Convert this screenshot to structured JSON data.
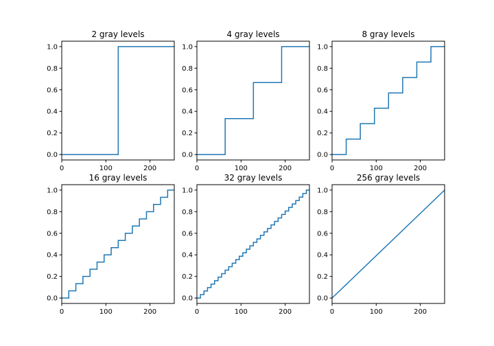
{
  "colors": {
    "series": "#1f77b4",
    "axes": "#000000",
    "background": "#ffffff"
  },
  "chart_data": [
    {
      "type": "line",
      "title": "2 gray levels",
      "levels": 2,
      "xlim": [
        0,
        255
      ],
      "ylim": [
        -0.05,
        1.05
      ],
      "xticks": [
        0,
        100,
        200
      ],
      "yticks": [
        0.0,
        0.2,
        0.4,
        0.6,
        0.8,
        1.0
      ],
      "xtick_labels": [
        "0",
        "100",
        "200"
      ],
      "ytick_labels": [
        "0.0",
        "0.2",
        "0.4",
        "0.6",
        "0.8",
        "1.0"
      ],
      "x": [
        0,
        128,
        128,
        255
      ],
      "y": [
        0,
        0,
        1,
        1
      ]
    },
    {
      "type": "line",
      "title": "4 gray levels",
      "levels": 4,
      "xlim": [
        0,
        255
      ],
      "ylim": [
        -0.05,
        1.05
      ],
      "xticks": [
        0,
        100,
        200
      ],
      "yticks": [
        0.0,
        0.2,
        0.4,
        0.6,
        0.8,
        1.0
      ],
      "xtick_labels": [
        "0",
        "100",
        "200"
      ],
      "ytick_labels": [
        "0.0",
        "0.2",
        "0.4",
        "0.6",
        "0.8",
        "1.0"
      ],
      "x": [
        0,
        64,
        64,
        128,
        128,
        192,
        192,
        255
      ],
      "y": [
        0,
        0,
        0.333,
        0.333,
        0.667,
        0.667,
        1,
        1
      ]
    },
    {
      "type": "line",
      "title": "8 gray levels",
      "levels": 8,
      "xlim": [
        0,
        255
      ],
      "ylim": [
        -0.05,
        1.05
      ],
      "xticks": [
        0,
        100,
        200
      ],
      "yticks": [
        0.0,
        0.2,
        0.4,
        0.6,
        0.8,
        1.0
      ],
      "xtick_labels": [
        "0",
        "100",
        "200"
      ],
      "ytick_labels": [
        "0.0",
        "0.2",
        "0.4",
        "0.6",
        "0.8",
        "1.0"
      ],
      "x": [
        0,
        32,
        32,
        64,
        64,
        96,
        96,
        128,
        128,
        160,
        160,
        192,
        192,
        224,
        224,
        255
      ],
      "y": [
        0,
        0,
        0.143,
        0.143,
        0.286,
        0.286,
        0.429,
        0.429,
        0.571,
        0.571,
        0.714,
        0.714,
        0.857,
        0.857,
        1,
        1
      ]
    },
    {
      "type": "line",
      "title": "16 gray levels",
      "levels": 16,
      "xlim": [
        0,
        255
      ],
      "ylim": [
        -0.05,
        1.05
      ],
      "xticks": [
        0,
        100,
        200
      ],
      "yticks": [
        0.0,
        0.2,
        0.4,
        0.6,
        0.8,
        1.0
      ],
      "xtick_labels": [
        "0",
        "100",
        "200"
      ],
      "ytick_labels": [
        "0.0",
        "0.2",
        "0.4",
        "0.6",
        "0.8",
        "1.0"
      ],
      "x": [
        0,
        16,
        16,
        32,
        32,
        48,
        48,
        64,
        64,
        80,
        80,
        96,
        96,
        112,
        112,
        128,
        128,
        144,
        144,
        160,
        160,
        176,
        176,
        192,
        192,
        208,
        208,
        224,
        224,
        240,
        240,
        255
      ],
      "y": [
        0,
        0,
        0.067,
        0.067,
        0.133,
        0.133,
        0.2,
        0.2,
        0.267,
        0.267,
        0.333,
        0.333,
        0.4,
        0.4,
        0.467,
        0.467,
        0.533,
        0.533,
        0.6,
        0.6,
        0.667,
        0.667,
        0.733,
        0.733,
        0.8,
        0.8,
        0.867,
        0.867,
        0.933,
        0.933,
        1,
        1
      ]
    },
    {
      "type": "line",
      "title": "32 gray levels",
      "levels": 32,
      "xlim": [
        0,
        255
      ],
      "ylim": [
        -0.05,
        1.05
      ],
      "xticks": [
        0,
        100,
        200
      ],
      "yticks": [
        0.0,
        0.2,
        0.4,
        0.6,
        0.8,
        1.0
      ],
      "xtick_labels": [
        "0",
        "100",
        "200"
      ],
      "ytick_labels": [
        "0.0",
        "0.2",
        "0.4",
        "0.6",
        "0.8",
        "1.0"
      ],
      "x": [
        0,
        8,
        8,
        16,
        16,
        24,
        24,
        32,
        32,
        40,
        40,
        48,
        48,
        56,
        56,
        64,
        64,
        72,
        72,
        80,
        80,
        88,
        88,
        96,
        96,
        104,
        104,
        112,
        112,
        120,
        120,
        128,
        128,
        136,
        136,
        144,
        144,
        152,
        152,
        160,
        160,
        168,
        168,
        176,
        176,
        184,
        184,
        192,
        192,
        200,
        200,
        208,
        208,
        216,
        216,
        224,
        224,
        232,
        232,
        240,
        240,
        248,
        248,
        255
      ],
      "y": [
        0,
        0,
        0.032,
        0.032,
        0.065,
        0.065,
        0.097,
        0.097,
        0.129,
        0.129,
        0.161,
        0.161,
        0.194,
        0.194,
        0.226,
        0.226,
        0.258,
        0.258,
        0.29,
        0.29,
        0.323,
        0.323,
        0.355,
        0.355,
        0.387,
        0.387,
        0.419,
        0.419,
        0.452,
        0.452,
        0.484,
        0.484,
        0.516,
        0.516,
        0.548,
        0.548,
        0.581,
        0.581,
        0.613,
        0.613,
        0.645,
        0.645,
        0.677,
        0.677,
        0.71,
        0.71,
        0.742,
        0.742,
        0.774,
        0.774,
        0.806,
        0.806,
        0.839,
        0.839,
        0.871,
        0.871,
        0.903,
        0.903,
        0.935,
        0.935,
        0.968,
        0.968,
        1,
        1
      ]
    },
    {
      "type": "line",
      "title": "256 gray levels",
      "levels": 256,
      "xlim": [
        0,
        255
      ],
      "ylim": [
        -0.05,
        1.05
      ],
      "xticks": [
        0,
        100,
        200
      ],
      "yticks": [
        0.0,
        0.2,
        0.4,
        0.6,
        0.8,
        1.0
      ],
      "xtick_labels": [
        "0",
        "100",
        "200"
      ],
      "ytick_labels": [
        "0.0",
        "0.2",
        "0.4",
        "0.6",
        "0.8",
        "1.0"
      ],
      "x": [
        0,
        255
      ],
      "y": [
        0,
        1
      ]
    }
  ]
}
